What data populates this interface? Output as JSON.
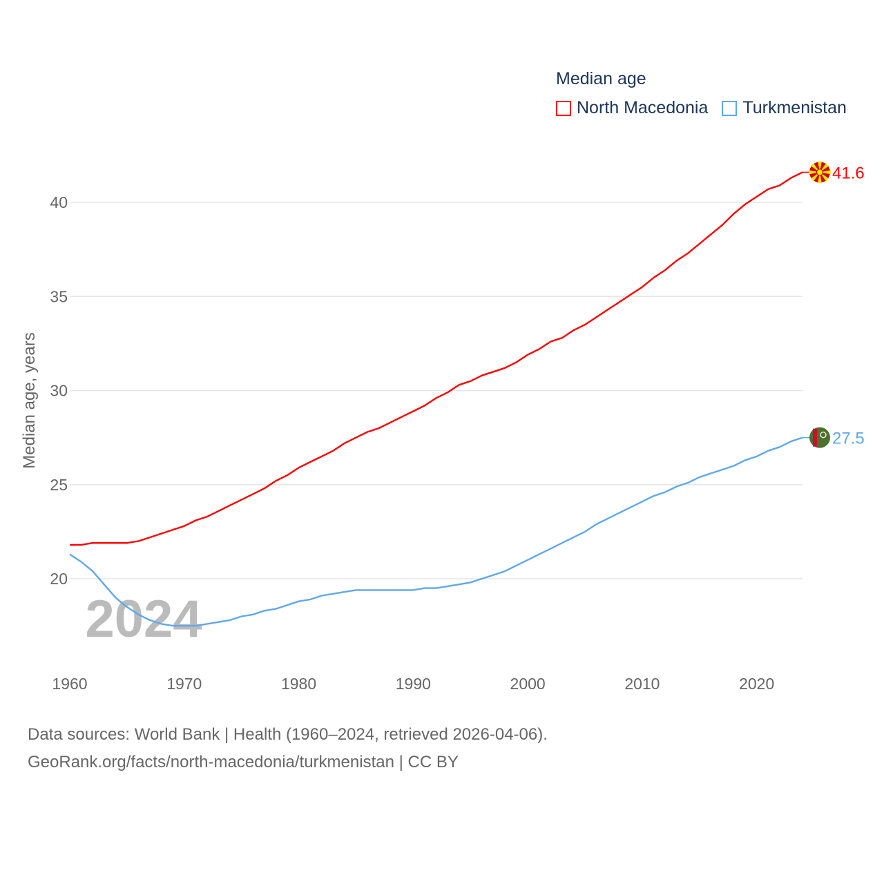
{
  "chart_data": {
    "type": "line",
    "title": "Median age",
    "xlabel": "",
    "ylabel": "Median age, years",
    "xlim": [
      1960,
      2024
    ],
    "ylim": [
      16,
      42
    ],
    "x_ticks": [
      1960,
      1970,
      1980,
      1990,
      2000,
      2010,
      2020
    ],
    "y_ticks": [
      20,
      25,
      30,
      35,
      40
    ],
    "grid": "horizontal",
    "legend_position": "top-right",
    "watermark_year": "2024",
    "x": [
      1960,
      1961,
      1962,
      1963,
      1964,
      1965,
      1966,
      1967,
      1968,
      1969,
      1970,
      1971,
      1972,
      1973,
      1974,
      1975,
      1976,
      1977,
      1978,
      1979,
      1980,
      1981,
      1982,
      1983,
      1984,
      1985,
      1986,
      1987,
      1988,
      1989,
      1990,
      1991,
      1992,
      1993,
      1994,
      1995,
      1996,
      1997,
      1998,
      1999,
      2000,
      2001,
      2002,
      2003,
      2004,
      2005,
      2006,
      2007,
      2008,
      2009,
      2010,
      2011,
      2012,
      2013,
      2014,
      2015,
      2016,
      2017,
      2018,
      2019,
      2020,
      2021,
      2022,
      2023,
      2024
    ],
    "series": [
      {
        "name": "North Macedonia",
        "color": "#ff0000",
        "end_label": "41.6",
        "values": [
          21.8,
          21.8,
          21.9,
          21.9,
          21.9,
          21.9,
          22.0,
          22.2,
          22.4,
          22.6,
          22.8,
          23.1,
          23.3,
          23.6,
          23.9,
          24.2,
          24.5,
          24.8,
          25.2,
          25.5,
          25.9,
          26.2,
          26.5,
          26.8,
          27.2,
          27.5,
          27.8,
          28.0,
          28.3,
          28.6,
          28.9,
          29.2,
          29.6,
          29.9,
          30.3,
          30.5,
          30.8,
          31.0,
          31.2,
          31.5,
          31.9,
          32.2,
          32.6,
          32.8,
          33.2,
          33.5,
          33.9,
          34.3,
          34.7,
          35.1,
          35.5,
          36.0,
          36.4,
          36.9,
          37.3,
          37.8,
          38.3,
          38.8,
          39.4,
          39.9,
          40.3,
          40.7,
          40.9,
          41.3,
          41.6
        ]
      },
      {
        "name": "Turkmenistan",
        "color": "#5ea8ec",
        "end_label": "27.5",
        "values": [
          21.3,
          20.9,
          20.4,
          19.7,
          19.0,
          18.5,
          18.1,
          17.8,
          17.6,
          17.5,
          17.5,
          17.5,
          17.6,
          17.7,
          17.8,
          18.0,
          18.1,
          18.3,
          18.4,
          18.6,
          18.8,
          18.9,
          19.1,
          19.2,
          19.3,
          19.4,
          19.4,
          19.4,
          19.4,
          19.4,
          19.4,
          19.5,
          19.5,
          19.6,
          19.7,
          19.8,
          20.0,
          20.2,
          20.4,
          20.7,
          21.0,
          21.3,
          21.6,
          21.9,
          22.2,
          22.5,
          22.9,
          23.2,
          23.5,
          23.8,
          24.1,
          24.4,
          24.6,
          24.9,
          25.1,
          25.4,
          25.6,
          25.8,
          26.0,
          26.3,
          26.5,
          26.8,
          27.0,
          27.3,
          27.5
        ]
      }
    ]
  },
  "footer": {
    "line1": "Data sources: World Bank | Health (1960–2024, retrieved 2026-04-06).",
    "line2": "GeoRank.org/facts/north-macedonia/turkmenistan | CC BY"
  }
}
